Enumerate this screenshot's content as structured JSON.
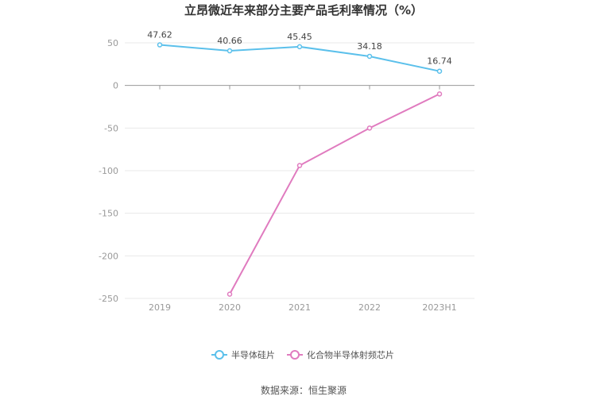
{
  "chart_data": {
    "type": "line",
    "title": "立昂微近年来部分主要产品毛利率情况（%）",
    "categories": [
      "2019",
      "2020",
      "2021",
      "2022",
      "2023H1"
    ],
    "yticks": [
      50,
      0,
      -50,
      -100,
      -150,
      -200,
      -250
    ],
    "ylim": [
      -250,
      60
    ],
    "grid": true,
    "legend_position": "bottom-center",
    "series": [
      {
        "name": "半导体硅片",
        "color": "#5bc0eb",
        "values": [
          47.62,
          40.66,
          45.45,
          34.18,
          16.74
        ],
        "labels": [
          "47.62",
          "40.66",
          "45.45",
          "34.18",
          "16.74"
        ]
      },
      {
        "name": "化合物半导体射频芯片",
        "color": "#e07bbf",
        "values": [
          null,
          -245,
          -94,
          -50,
          -10
        ]
      }
    ]
  },
  "source": "数据来源：恒生聚源"
}
